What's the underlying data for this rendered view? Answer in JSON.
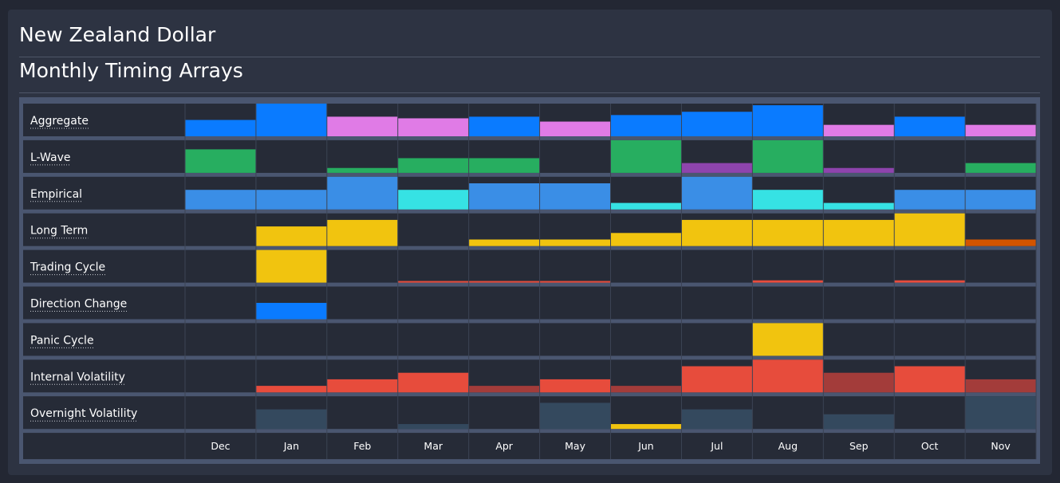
{
  "header": {
    "title": "New Zealand Dollar",
    "subtitle": "Monthly Timing Arrays"
  },
  "colors": {
    "background": "#232733",
    "panel": "#2d3342",
    "cell": "#262b37",
    "grid_line": "#3c4455",
    "row_separator": "#4a5670"
  },
  "chart_data": {
    "type": "heatmap",
    "title": "Monthly Timing Arrays",
    "months": [
      "Dec",
      "Jan",
      "Feb",
      "Mar",
      "Apr",
      "May",
      "Jun",
      "Jul",
      "Aug",
      "Sep",
      "Oct",
      "Nov"
    ],
    "level_scale": "fraction of row height filled by bar",
    "rows": [
      {
        "name": "Aggregate",
        "values": [
          0.5,
          1.0,
          0.6,
          0.55,
          0.6,
          0.45,
          0.65,
          0.75,
          0.95,
          0.35,
          0.6,
          0.35
        ],
        "colors": [
          "#0a7bff",
          "#0a7bff",
          "#e07be6",
          "#e07be6",
          "#0a7bff",
          "#e07be6",
          "#0a7bff",
          "#0a7bff",
          "#0a7bff",
          "#e07be6",
          "#0a7bff",
          "#e07be6"
        ]
      },
      {
        "name": "L-Wave",
        "values": [
          0.72,
          0,
          0.15,
          0.45,
          0.45,
          0,
          1.0,
          0.3,
          1.0,
          0.15,
          0,
          0.3
        ],
        "colors": [
          "#27ae60",
          "#27ae60",
          "#27ae60",
          "#27ae60",
          "#27ae60",
          "#27ae60",
          "#27ae60",
          "#8e44ad",
          "#27ae60",
          "#8e44ad",
          "#27ae60",
          "#27ae60"
        ]
      },
      {
        "name": "Empirical",
        "values": [
          0.6,
          0.6,
          1.0,
          0.6,
          0.8,
          0.8,
          0.2,
          1.0,
          0.6,
          0.2,
          0.6,
          0.6
        ],
        "colors": [
          "#3a8ee6",
          "#3a8ee6",
          "#3a8ee6",
          "#36e2e4",
          "#3a8ee6",
          "#3a8ee6",
          "#36e2e4",
          "#3a8ee6",
          "#36e2e4",
          "#36e2e4",
          "#3a8ee6",
          "#3a8ee6"
        ]
      },
      {
        "name": "Long Term",
        "values": [
          0,
          0.6,
          0.8,
          0,
          0.2,
          0.2,
          0.4,
          0.8,
          0.8,
          0.8,
          1.0,
          0.2
        ],
        "colors": [
          "#f1c40f",
          "#f1c40f",
          "#f1c40f",
          "#f1c40f",
          "#f1c40f",
          "#f1c40f",
          "#f1c40f",
          "#f1c40f",
          "#f1c40f",
          "#f1c40f",
          "#f1c40f",
          "#d35400"
        ]
      },
      {
        "name": "Trading Cycle",
        "values": [
          0,
          1.0,
          0,
          0.05,
          0.05,
          0.05,
          0,
          0,
          0.07,
          0,
          0.07,
          0
        ],
        "colors": [
          "#f1c40f",
          "#f1c40f",
          "#e74c3c",
          "#e74c3c",
          "#e74c3c",
          "#e74c3c",
          "#e74c3c",
          "#e74c3c",
          "#e74c3c",
          "#e74c3c",
          "#e74c3c",
          "#e74c3c"
        ]
      },
      {
        "name": "Direction Change",
        "values": [
          0,
          0.5,
          0,
          0,
          0,
          0,
          0,
          0,
          0,
          0,
          0,
          0
        ],
        "colors": [
          "#0a7bff",
          "#0a7bff",
          "#0a7bff",
          "#0a7bff",
          "#0a7bff",
          "#0a7bff",
          "#0a7bff",
          "#0a7bff",
          "#0a7bff",
          "#0a7bff",
          "#0a7bff",
          "#0a7bff"
        ]
      },
      {
        "name": "Panic Cycle",
        "values": [
          0,
          0,
          0,
          0,
          0,
          0,
          0,
          0,
          1.0,
          0,
          0,
          0
        ],
        "colors": [
          "#f1c40f",
          "#f1c40f",
          "#f1c40f",
          "#f1c40f",
          "#f1c40f",
          "#f1c40f",
          "#f1c40f",
          "#f1c40f",
          "#f1c40f",
          "#f1c40f",
          "#f1c40f",
          "#f1c40f"
        ]
      },
      {
        "name": "Internal Volatility",
        "values": [
          0,
          0.2,
          0.4,
          0.6,
          0.2,
          0.4,
          0.2,
          0.8,
          1.0,
          0.6,
          0.8,
          0.4
        ],
        "colors": [
          "#e74c3c",
          "#e74c3c",
          "#e74c3c",
          "#e74c3c",
          "#a33c3a",
          "#e74c3c",
          "#a33c3a",
          "#e74c3c",
          "#e74c3c",
          "#a33c3a",
          "#e74c3c",
          "#a33c3a"
        ]
      },
      {
        "name": "Overnight Volatility",
        "values": [
          0,
          0.6,
          0,
          0.15,
          0,
          0.8,
          0.15,
          0.6,
          0,
          0.45,
          0,
          1.0
        ],
        "colors": [
          "#34495e",
          "#34495e",
          "#34495e",
          "#34495e",
          "#34495e",
          "#34495e",
          "#f1c40f",
          "#34495e",
          "#34495e",
          "#34495e",
          "#34495e",
          "#34495e"
        ]
      }
    ]
  }
}
